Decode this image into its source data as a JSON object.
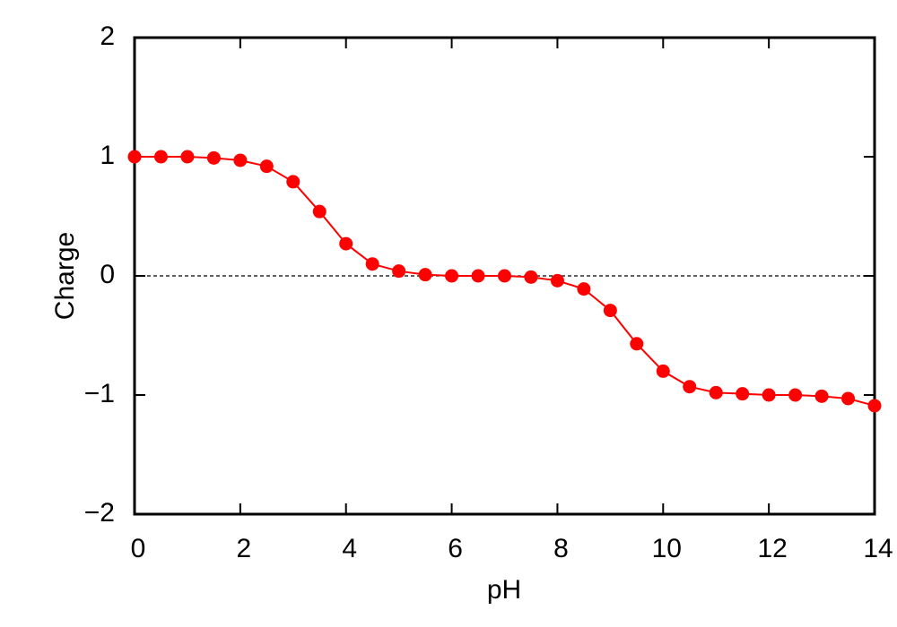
{
  "chart_data": {
    "type": "line",
    "x_label": "pH",
    "y_label": "Charge",
    "x": [
      0,
      0.5,
      1,
      1.5,
      2,
      2.5,
      3,
      3.5,
      4,
      4.5,
      5,
      5.5,
      6,
      6.5,
      7,
      7.5,
      8,
      8.5,
      9,
      9.5,
      10,
      10.5,
      11,
      11.5,
      12,
      12.5,
      13,
      13.5,
      14
    ],
    "series": [
      {
        "color": "#ff0000",
        "values": [
          1.0,
          1.0,
          1.0,
          0.99,
          0.97,
          0.92,
          0.79,
          0.54,
          0.27,
          0.1,
          0.04,
          0.01,
          0.0,
          0.0,
          0.0,
          -0.01,
          -0.04,
          -0.11,
          -0.29,
          -0.57,
          -0.8,
          -0.93,
          -0.98,
          -0.99,
          -1.0,
          -1.0,
          -1.01,
          -1.03,
          -1.09
        ]
      }
    ],
    "xlim": [
      0,
      14
    ],
    "xticks": [
      0,
      2,
      4,
      6,
      8,
      10,
      12,
      14
    ],
    "ylim": [
      -2,
      2
    ],
    "yticks": [
      {
        "value": -2,
        "label": "−2"
      },
      {
        "value": -1,
        "label": "−1"
      },
      0,
      1,
      2
    ],
    "zero_line": true,
    "mirror_ticks": true
  }
}
